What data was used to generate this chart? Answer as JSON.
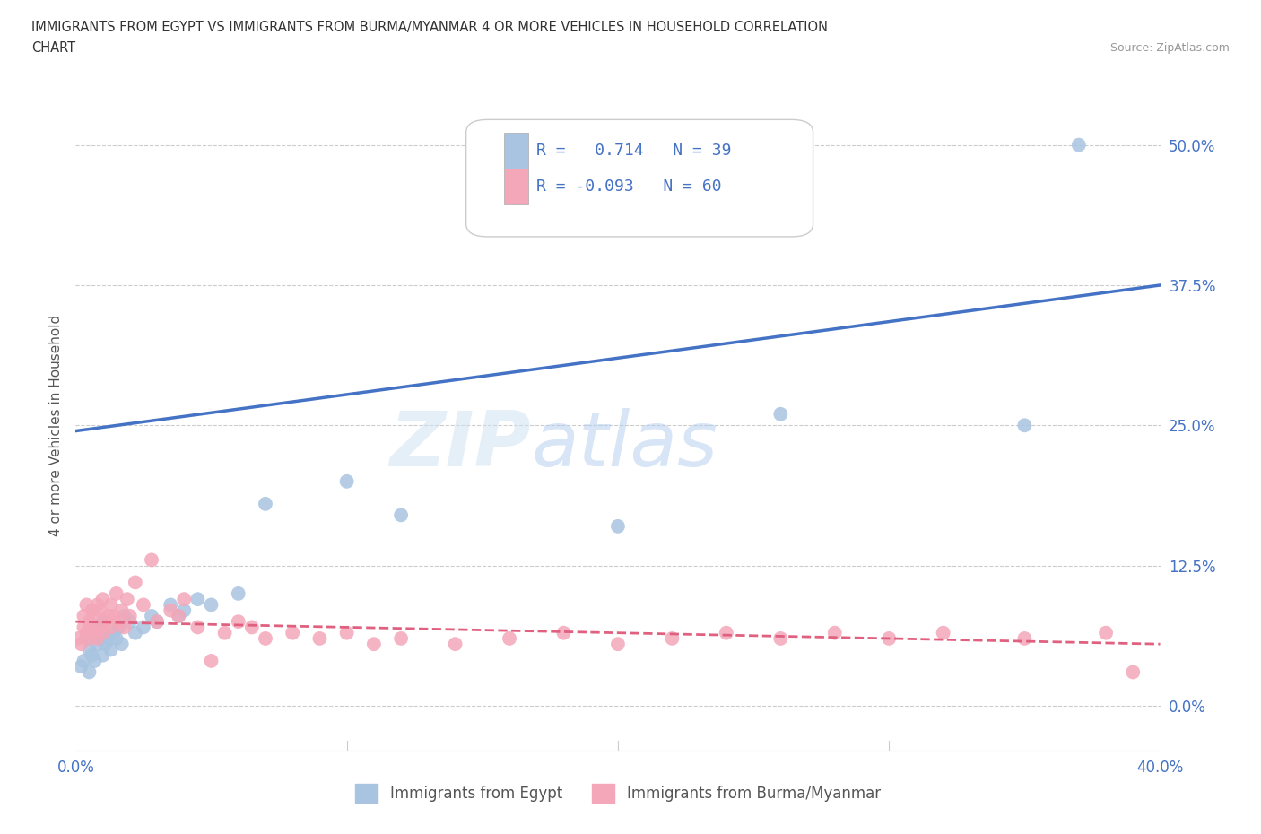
{
  "title_line1": "IMMIGRANTS FROM EGYPT VS IMMIGRANTS FROM BURMA/MYANMAR 4 OR MORE VEHICLES IN HOUSEHOLD CORRELATION",
  "title_line2": "CHART",
  "source": "Source: ZipAtlas.com",
  "ylabel": "4 or more Vehicles in Household",
  "xmin": 0.0,
  "xmax": 0.4,
  "ymin": -0.04,
  "ymax": 0.54,
  "yticks": [
    0.0,
    0.125,
    0.25,
    0.375,
    0.5
  ],
  "ytick_labels": [
    "0.0%",
    "12.5%",
    "25.0%",
    "37.5%",
    "50.0%"
  ],
  "xticks": [
    0.0,
    0.1,
    0.2,
    0.3,
    0.4
  ],
  "xtick_labels": [
    "0.0%",
    "",
    "",
    "",
    "40.0%"
  ],
  "egypt_color": "#a8c4e0",
  "burma_color": "#f4a7b9",
  "egypt_line_color": "#4472c4",
  "burma_line_color": "#e06080",
  "egypt_R": 0.714,
  "egypt_N": 39,
  "burma_R": -0.093,
  "burma_N": 60,
  "watermark": "ZIPatlas",
  "legend_egypt_label": "Immigrants from Egypt",
  "legend_burma_label": "Immigrants from Burma/Myanmar",
  "egypt_line_x0": 0.0,
  "egypt_line_y0": 0.245,
  "egypt_line_x1": 0.4,
  "egypt_line_y1": 0.375,
  "burma_line_x0": 0.0,
  "burma_line_y0": 0.075,
  "burma_line_x1": 0.4,
  "burma_line_y1": 0.055,
  "egypt_x": [
    0.002,
    0.003,
    0.004,
    0.005,
    0.005,
    0.006,
    0.006,
    0.007,
    0.008,
    0.008,
    0.009,
    0.01,
    0.01,
    0.011,
    0.012,
    0.013,
    0.014,
    0.015,
    0.016,
    0.017,
    0.018,
    0.02,
    0.022,
    0.025,
    0.028,
    0.03,
    0.035,
    0.038,
    0.04,
    0.045,
    0.05,
    0.06,
    0.07,
    0.1,
    0.12,
    0.2,
    0.26,
    0.35,
    0.37
  ],
  "egypt_y": [
    0.035,
    0.04,
    0.06,
    0.05,
    0.03,
    0.045,
    0.065,
    0.04,
    0.055,
    0.07,
    0.06,
    0.045,
    0.075,
    0.055,
    0.06,
    0.05,
    0.065,
    0.06,
    0.07,
    0.055,
    0.08,
    0.075,
    0.065,
    0.07,
    0.08,
    0.075,
    0.09,
    0.08,
    0.085,
    0.095,
    0.09,
    0.1,
    0.18,
    0.2,
    0.17,
    0.16,
    0.26,
    0.25,
    0.5
  ],
  "burma_x": [
    0.001,
    0.002,
    0.003,
    0.003,
    0.004,
    0.004,
    0.005,
    0.005,
    0.006,
    0.006,
    0.007,
    0.007,
    0.008,
    0.008,
    0.009,
    0.009,
    0.01,
    0.01,
    0.011,
    0.012,
    0.013,
    0.013,
    0.014,
    0.015,
    0.016,
    0.017,
    0.018,
    0.019,
    0.02,
    0.022,
    0.025,
    0.028,
    0.03,
    0.035,
    0.038,
    0.04,
    0.045,
    0.05,
    0.055,
    0.06,
    0.065,
    0.07,
    0.08,
    0.09,
    0.1,
    0.11,
    0.12,
    0.14,
    0.16,
    0.18,
    0.2,
    0.22,
    0.24,
    0.26,
    0.28,
    0.3,
    0.32,
    0.35,
    0.38,
    0.39
  ],
  "burma_y": [
    0.06,
    0.055,
    0.07,
    0.08,
    0.065,
    0.09,
    0.06,
    0.075,
    0.07,
    0.085,
    0.065,
    0.08,
    0.06,
    0.09,
    0.07,
    0.085,
    0.065,
    0.095,
    0.075,
    0.08,
    0.07,
    0.09,
    0.08,
    0.1,
    0.075,
    0.085,
    0.07,
    0.095,
    0.08,
    0.11,
    0.09,
    0.13,
    0.075,
    0.085,
    0.08,
    0.095,
    0.07,
    0.04,
    0.065,
    0.075,
    0.07,
    0.06,
    0.065,
    0.06,
    0.065,
    0.055,
    0.06,
    0.055,
    0.06,
    0.065,
    0.055,
    0.06,
    0.065,
    0.06,
    0.065,
    0.06,
    0.065,
    0.06,
    0.065,
    0.03
  ]
}
